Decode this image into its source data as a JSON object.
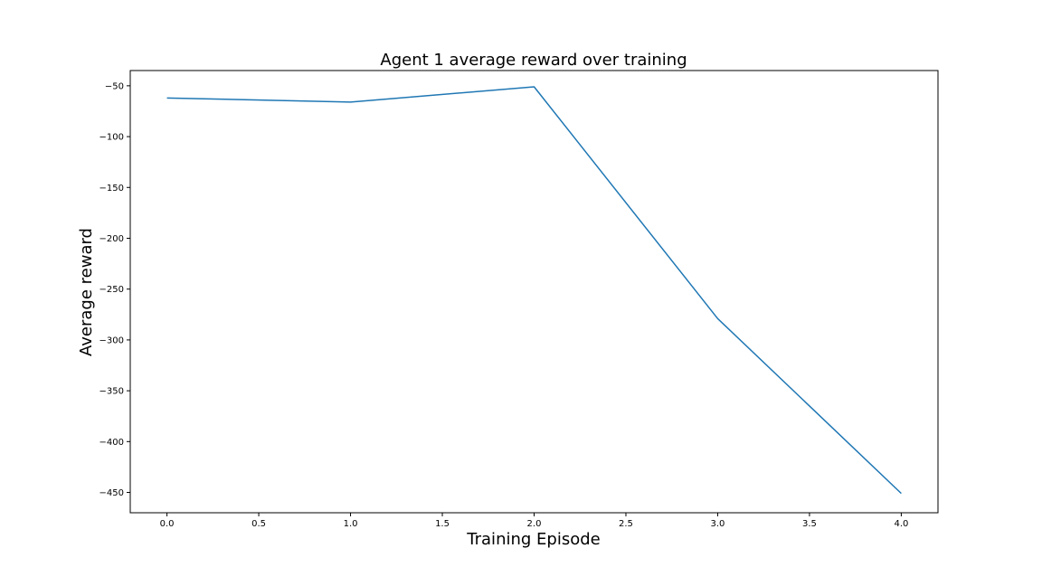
{
  "chart_data": {
    "type": "line",
    "title": "Agent 1 average reward over training",
    "xlabel": "Training Episode",
    "ylabel": "Average reward",
    "xlim": [
      -0.2,
      4.2
    ],
    "ylim": [
      -470,
      -35
    ],
    "x_ticks": [
      0.0,
      0.5,
      1.0,
      1.5,
      2.0,
      2.5,
      3.0,
      3.5,
      4.0
    ],
    "x_tick_labels": [
      "0.0",
      "0.5",
      "1.0",
      "1.5",
      "2.0",
      "2.5",
      "3.0",
      "3.5",
      "4.0"
    ],
    "y_ticks": [
      -50,
      -100,
      -150,
      -200,
      -250,
      -300,
      -350,
      -400,
      -450
    ],
    "y_tick_labels": [
      "−50",
      "−100",
      "−150",
      "−200",
      "−250",
      "−300",
      "−350",
      "−400",
      "−450"
    ],
    "grid": false,
    "series": [
      {
        "color": "#1f77b4",
        "x": [
          0,
          1,
          2,
          3,
          4
        ],
        "y": [
          -62,
          -66,
          -51,
          -279,
          -451
        ]
      }
    ]
  }
}
